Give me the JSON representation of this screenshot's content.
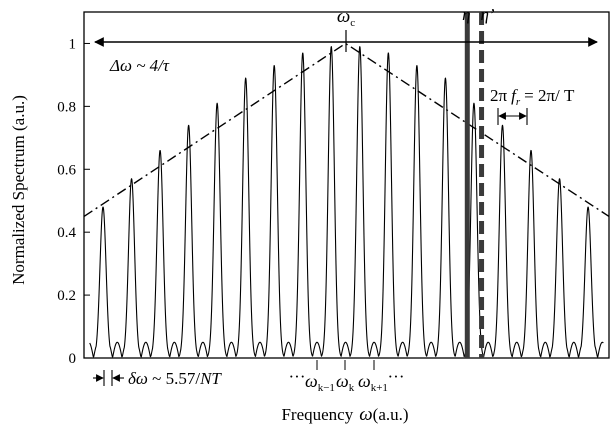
{
  "chart_data": {
    "type": "line",
    "title": "",
    "xlabel": "Frequency",
    "xlabel_symbol": "ω",
    "xlabel_unit": "(a.u.)",
    "ylabel": "Normalized Spectrum (a.u.)",
    "ylim": [
      0,
      1.1
    ],
    "yticks": [
      0,
      0.2,
      0.4,
      0.6,
      0.8,
      1
    ],
    "ytick_labels": [
      "0",
      "0.2",
      "0.4",
      "0.6",
      "0.8",
      "1"
    ],
    "x_range_au": [
      0,
      27.6
    ],
    "grid": false,
    "legend": "none",
    "series": [
      {
        "style": "solid",
        "x": [
          1,
          2.5,
          4,
          5.5,
          7,
          8.5,
          10,
          11.5,
          13,
          14.5,
          16,
          17.5,
          19,
          20.5,
          22,
          23.5,
          25,
          26.5
        ],
        "values": [
          0.48,
          0.57,
          0.66,
          0.74,
          0.81,
          0.89,
          0.93,
          0.97,
          0.99,
          0.99,
          0.97,
          0.93,
          0.89,
          0.81,
          0.74,
          0.66,
          0.57,
          0.48
        ]
      },
      {
        "style": "dash-dot envelope",
        "x": [
          0,
          13.75,
          27.6
        ],
        "values": [
          0.45,
          1.0,
          0.45
        ]
      }
    ],
    "markers": [
      {
        "label": "η",
        "x": 20.15,
        "style": "solid"
      },
      {
        "label": "η’",
        "x": 20.9,
        "style": "dashed"
      }
    ],
    "annotations": {
      "omega_c": {
        "symbol": "ω",
        "sub": "c"
      },
      "bandwidth": "Δω ~ 4/τ",
      "rep_rate_lhs": "2π",
      "rep_rate_var": "f",
      "rep_rate_sub": "r",
      "rep_rate_rhs": "= 2π/ T",
      "linewidth_sym": "δω",
      "linewidth_rest": " ~ 5.57/",
      "linewidth_var": "NT",
      "ellipsis": "···",
      "omega_km1": {
        "symbol": "ω",
        "sub": "k−1"
      },
      "omega_k": {
        "symbol": "ω",
        "sub": "k"
      },
      "omega_kp1": {
        "symbol": "ω",
        "sub": "k+1"
      }
    }
  }
}
